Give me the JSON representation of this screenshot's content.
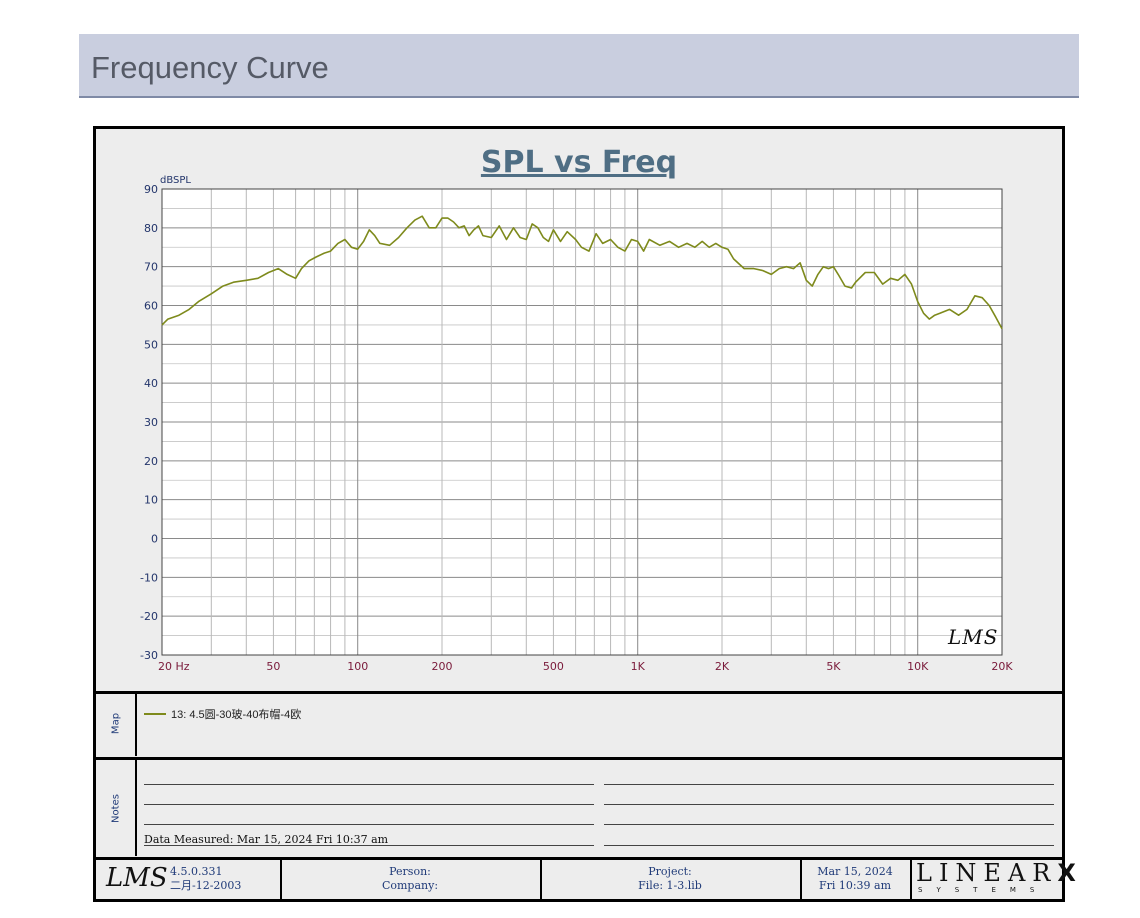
{
  "header": {
    "title": "Frequency Curve"
  },
  "chart_data": {
    "type": "line",
    "title": "SPL vs Freq",
    "ylabel": "dBSPL",
    "xlabel": "",
    "x_scale": "log",
    "xlim": [
      20,
      20000
    ],
    "ylim": [
      -30,
      90
    ],
    "y_ticks": [
      "90",
      "80",
      "70",
      "60",
      "50",
      "40",
      "30",
      "20",
      "10",
      "0",
      "-10",
      "-20",
      "-30"
    ],
    "x_tick_labels": [
      {
        "f": 20,
        "label": "20  Hz"
      },
      {
        "f": 50,
        "label": "50"
      },
      {
        "f": 100,
        "label": "100"
      },
      {
        "f": 200,
        "label": "200"
      },
      {
        "f": 500,
        "label": "500"
      },
      {
        "f": 1000,
        "label": "1K"
      },
      {
        "f": 2000,
        "label": "2K"
      },
      {
        "f": 5000,
        "label": "5K"
      },
      {
        "f": 10000,
        "label": "10K"
      },
      {
        "f": 20000,
        "label": "20K"
      }
    ],
    "grid": true,
    "series_color": "#7e8a1c",
    "series": [
      {
        "name": "13: 4.5圆-30玻-40布帽-4欧",
        "x": [
          20,
          21,
          23,
          25,
          27,
          30,
          33,
          36,
          40,
          44,
          48,
          52,
          56,
          60,
          63,
          67,
          71,
          76,
          80,
          85,
          90,
          95,
          100,
          105,
          110,
          115,
          120,
          130,
          140,
          150,
          160,
          170,
          180,
          190,
          200,
          210,
          220,
          230,
          240,
          250,
          260,
          270,
          280,
          300,
          320,
          340,
          360,
          380,
          400,
          420,
          440,
          460,
          480,
          500,
          530,
          560,
          600,
          630,
          670,
          710,
          750,
          800,
          850,
          900,
          950,
          1000,
          1050,
          1100,
          1200,
          1300,
          1400,
          1500,
          1600,
          1700,
          1800,
          1900,
          2000,
          2100,
          2200,
          2400,
          2600,
          2800,
          3000,
          3200,
          3400,
          3600,
          3800,
          4000,
          4200,
          4400,
          4600,
          4800,
          5000,
          5200,
          5500,
          5800,
          6000,
          6500,
          7000,
          7500,
          8000,
          8500,
          9000,
          9500,
          10000,
          10500,
          11000,
          11500,
          12000,
          13000,
          14000,
          15000,
          16000,
          17000,
          18000,
          19000,
          20000
        ],
        "y": [
          55,
          56.5,
          57.5,
          59,
          61,
          63,
          65,
          66,
          66.5,
          67,
          68.5,
          69.5,
          68,
          67,
          69.5,
          71.5,
          72.5,
          73.5,
          74,
          76,
          77,
          75,
          74.5,
          76.5,
          79.5,
          78,
          76,
          75.5,
          77.5,
          80,
          82,
          83,
          80,
          80,
          82.5,
          82.5,
          81.5,
          80,
          80.5,
          78,
          79.5,
          80.5,
          78,
          77.5,
          80.5,
          77,
          80,
          77.5,
          77,
          81,
          80,
          77.5,
          76.5,
          79.5,
          76.5,
          79,
          77,
          75,
          74,
          78.5,
          76,
          77,
          75,
          74,
          77,
          76.5,
          74,
          77,
          75.5,
          76.5,
          75,
          76,
          75,
          76.5,
          75,
          76,
          75,
          74.5,
          72,
          69.5,
          69.5,
          69,
          68,
          69.5,
          70,
          69.5,
          71,
          66.5,
          65,
          68,
          70,
          69.5,
          70,
          68,
          65,
          64.5,
          66,
          68.5,
          68.5,
          65.5,
          67,
          66.5,
          68,
          65.5,
          61,
          58,
          56.5,
          57.5,
          58,
          59,
          57.5,
          59,
          62.5,
          62,
          60,
          57,
          54
        ]
      }
    ],
    "watermark": "LMS"
  },
  "legend": {
    "map_label": "Map",
    "entry": "13: 4.5圆-30玻-40布帽-4欧"
  },
  "notes": {
    "label": "Notes",
    "measured": "Data Measured: Mar 15, 2024  Fri 10:37 am"
  },
  "footer": {
    "logo": "LMS",
    "version": "4.5.0.331",
    "version_date": "二月-12-2003",
    "person_label": "Person:",
    "company_label": "Company:",
    "project_label": "Project:",
    "file_label": "File: 1-3.lib",
    "print_date": "Mar 15, 2024",
    "print_time": "Fri 10:39 am",
    "brand": "LINEAR",
    "brand_x": "X",
    "brand_sub": "SYSTEMS"
  }
}
